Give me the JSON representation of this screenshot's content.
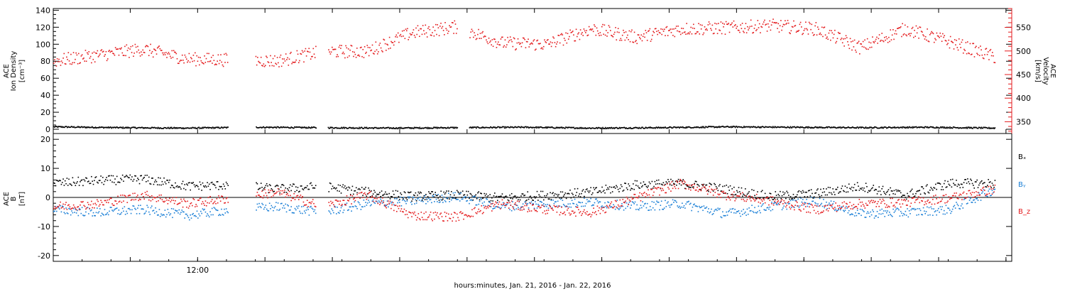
{
  "chart_data": [
    {
      "type": "scatter",
      "xlabel": "hours:minutes, Jan. 21, 2016 - Jan. 22, 2016",
      "xlim": [
        7,
        40.2
      ],
      "x_ticks": [
        {
          "value": 9.667,
          "label": ""
        },
        {
          "value": 12,
          "label": "12:00"
        },
        {
          "value": 14.333,
          "label": ""
        },
        {
          "value": 16.667,
          "label": ""
        },
        {
          "value": 19,
          "label": ""
        },
        {
          "value": 21.333,
          "label": ""
        },
        {
          "value": 23.667,
          "label": ""
        },
        {
          "value": 26,
          "label": ""
        },
        {
          "value": 28.333,
          "label": ""
        },
        {
          "value": 30.667,
          "label": ""
        },
        {
          "value": 33,
          "label": ""
        },
        {
          "value": 35.333,
          "label": ""
        },
        {
          "value": 37.667,
          "label": ""
        },
        {
          "value": 40,
          "label": ""
        }
      ],
      "left_axis": {
        "ylabel_lines": [
          "ACE",
          "Ion Density",
          "[cm⁻³]"
        ],
        "ylim": [
          -5,
          142
        ],
        "ticks": [
          0,
          20,
          40,
          60,
          80,
          100,
          120,
          140
        ]
      },
      "right_axis": {
        "ylabel_lines": [
          "ACE",
          "Velocity",
          "[km/s]"
        ],
        "ylim": [
          325,
          590
        ],
        "ticks": [
          350,
          400,
          450,
          500,
          550
        ],
        "color": "#e41a1c"
      },
      "gaps": [
        [
          13.05,
          14.0
        ],
        [
          16.1,
          16.5
        ],
        [
          21.0,
          21.4
        ]
      ],
      "series": [
        {
          "axis": "left",
          "color": "#000000",
          "x_range": [
            7.0,
            39.6
          ],
          "profile": [
            3.5,
            2.5,
            2.0,
            3.0,
            2.5,
            2.0,
            2.5,
            3.0,
            2.0,
            2.5,
            3.5,
            3.0,
            2.5,
            3.0,
            2.0
          ]
        },
        {
          "axis": "right",
          "color": "#e41a1c",
          "x_range": [
            7.0,
            39.6
          ],
          "profile": [
            480,
            492,
            505,
            484,
            482,
            480,
            500,
            500,
            540,
            552,
            518,
            515,
            548,
            530,
            548,
            550,
            555,
            548,
            508,
            548,
            520,
            488
          ]
        }
      ]
    },
    {
      "type": "scatter",
      "xlim": [
        7,
        40.2
      ],
      "left_axis": {
        "ylabel_lines": [
          "ACE",
          "B",
          "[nT]"
        ],
        "ylim": [
          -22,
          22
        ],
        "ticks": [
          -20,
          -10,
          0,
          10,
          20
        ],
        "zero_line": true
      },
      "legend_position": "right",
      "gaps": [
        [
          13.05,
          14.0
        ],
        [
          16.1,
          16.5
        ]
      ],
      "series": [
        {
          "name": "Bₓ",
          "color": "#000000",
          "x_range": [
            7.0,
            39.6
          ],
          "profile": [
            5.0,
            6.0,
            6.5,
            4.0,
            4.5,
            3.0,
            4.0,
            2.0,
            0.5,
            1.0,
            0.0,
            1.0,
            2.0,
            4.5,
            5.0,
            3.0,
            0.5,
            1.5,
            4.0,
            1.0,
            5.0,
            5.0
          ]
        },
        {
          "name": "Bᵧ",
          "color": "#1a7fd6",
          "x_range": [
            7.0,
            39.6
          ],
          "profile": [
            -4.0,
            -5.0,
            -4.0,
            -6.0,
            -4.0,
            -3.0,
            -5.0,
            -2.0,
            -1.0,
            0.5,
            -3.0,
            -2.0,
            -1.5,
            -3.0,
            -2.0,
            -5.5,
            -3.0,
            -1.0,
            -5.5,
            -5.0,
            -4.0,
            3.0
          ]
        },
        {
          "name": "B_z",
          "color": "#e41a1c",
          "x_range": [
            7.0,
            39.6
          ],
          "profile": [
            -3.0,
            -2.0,
            1.0,
            -2.0,
            0.0,
            2.0,
            -3.0,
            1.0,
            -6.0,
            -6.5,
            -2.0,
            -4.0,
            -5.0,
            0.0,
            5.0,
            1.0,
            -1.0,
            -4.0,
            -2.0,
            -1.5,
            0.0,
            3.0
          ]
        }
      ]
    }
  ]
}
